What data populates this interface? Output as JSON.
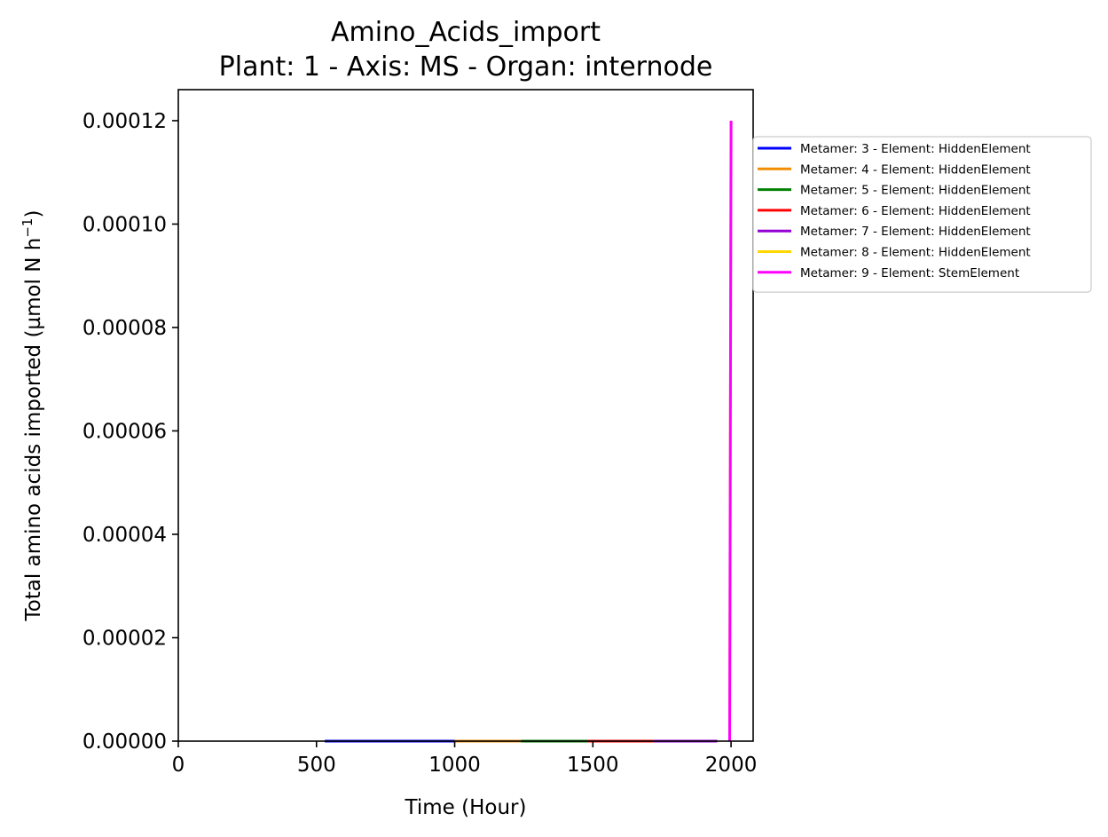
{
  "chart_data": {
    "type": "line",
    "title": "Amino_Acids_import",
    "subtitle": "Plant: 1 - Axis: MS - Organ: internode",
    "xlabel": "Time (Hour)",
    "ylabel": "Total amino acids imported (µmol N h",
    "ylabel_exponent": "−1",
    "ylabel_suffix": ")",
    "xlim": [
      0,
      2080
    ],
    "ylim": [
      0,
      0.000126
    ],
    "x_ticks": [
      0,
      500,
      1000,
      1500,
      2000
    ],
    "x_tick_labels": [
      "0",
      "500",
      "1000",
      "1500",
      "2000"
    ],
    "y_ticks": [
      0,
      2e-05,
      4e-05,
      6e-05,
      8e-05,
      0.0001,
      0.00012
    ],
    "y_tick_labels": [
      "0.00000",
      "0.00002",
      "0.00004",
      "0.00006",
      "0.00008",
      "0.00010",
      "0.00012"
    ],
    "grid": false,
    "legend_position": "outside-right-top",
    "series": [
      {
        "name": "Metamer: 3 - Element: HiddenElement",
        "color": "#0000ff",
        "x": [
          530,
          1000
        ],
        "y": [
          0,
          0
        ]
      },
      {
        "name": "Metamer: 4 - Element: HiddenElement",
        "color": "#f28c00",
        "x": [
          1000,
          1240
        ],
        "y": [
          0,
          0
        ]
      },
      {
        "name": "Metamer: 5 - Element: HiddenElement",
        "color": "#008000",
        "x": [
          1240,
          1480
        ],
        "y": [
          0,
          0
        ]
      },
      {
        "name": "Metamer: 6 - Element: HiddenElement",
        "color": "#ff0000",
        "x": [
          1480,
          1720
        ],
        "y": [
          0,
          0
        ]
      },
      {
        "name": "Metamer: 7 - Element: HiddenElement",
        "color": "#9400d3",
        "x": [
          1720,
          1950
        ],
        "y": [
          0,
          0
        ]
      },
      {
        "name": "Metamer: 8 - Element: HiddenElement",
        "color": "#ffd700",
        "x": [
          1995,
          2000
        ],
        "y": [
          0,
          0.00012
        ]
      },
      {
        "name": "Metamer: 9 - Element: StemElement",
        "color": "#ff00ff",
        "x": [
          1995,
          2000
        ],
        "y": [
          0,
          0.00012
        ]
      }
    ]
  }
}
